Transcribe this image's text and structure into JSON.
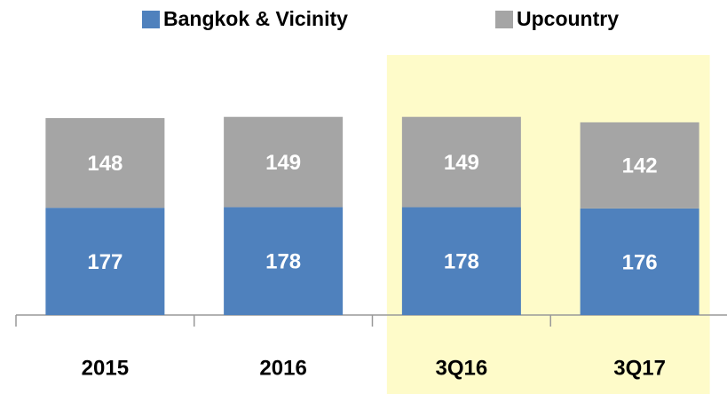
{
  "chart_data": {
    "type": "stacked_bar",
    "categories": [
      "2015",
      "2016",
      "3Q16",
      "3Q17"
    ],
    "series": [
      {
        "name": "Bangkok & Vicinity",
        "color": "#4f81bd",
        "values": [
          177,
          178,
          178,
          176
        ]
      },
      {
        "name": "Upcountry",
        "color": "#a5a5a5",
        "values": [
          148,
          149,
          149,
          142
        ]
      }
    ],
    "ylim": [
      0,
      350
    ],
    "legend": "top",
    "highlight": {
      "from": "3Q16",
      "to": "3Q17",
      "color": "#fefbc9"
    }
  }
}
